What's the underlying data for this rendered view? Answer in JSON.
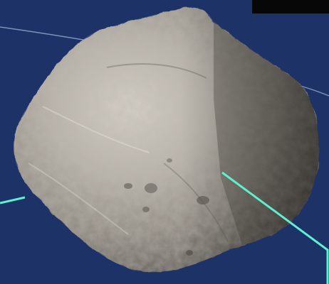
{
  "scene": {
    "subject": "asteroid-illustration",
    "colors": {
      "background": "#1d3266",
      "orbit_line": "#9fb3d8",
      "pointer_line": "#5ef0cf",
      "rock_light": "#cfc8bd",
      "rock_mid": "#9f998f",
      "rock_dark": "#4f4b46",
      "corner_box": "#070707"
    }
  }
}
